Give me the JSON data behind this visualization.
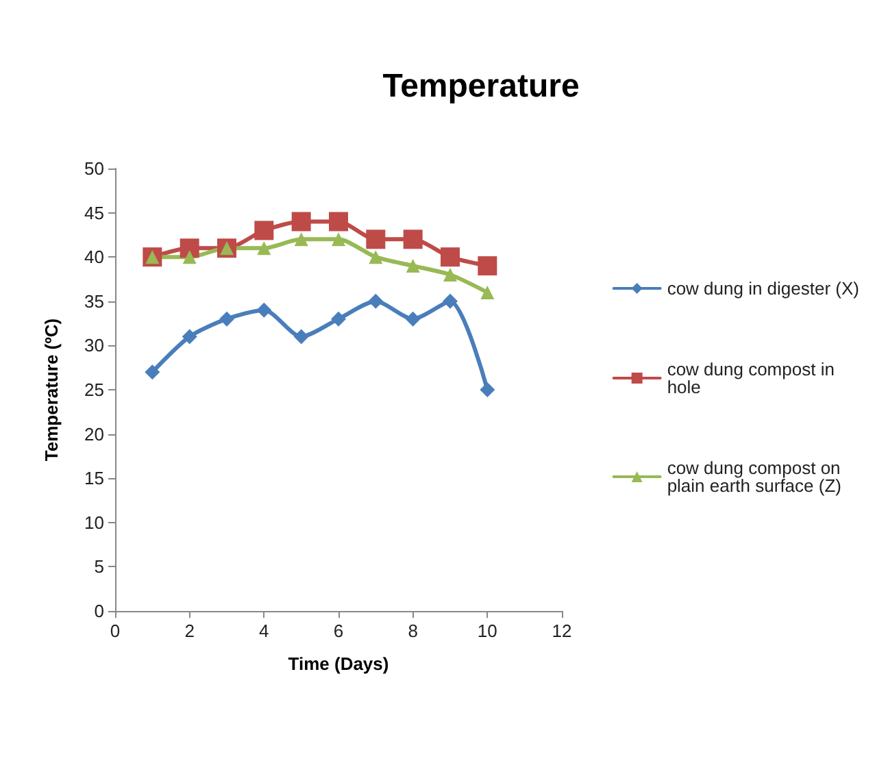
{
  "chart_data": {
    "type": "line",
    "title": "Temperature",
    "xlabel": "Time (Days)",
    "ylabel": "Temperature (ºC)",
    "x": [
      1,
      2,
      3,
      4,
      5,
      6,
      7,
      8,
      9,
      10
    ],
    "xlim": [
      0,
      12
    ],
    "xticks": [
      0,
      2,
      4,
      6,
      8,
      10,
      12
    ],
    "ylim": [
      0,
      50
    ],
    "yticks": [
      0,
      5,
      10,
      15,
      20,
      25,
      30,
      35,
      40,
      45,
      50
    ],
    "grid": false,
    "legend": "right",
    "line_style": "solid",
    "series": [
      {
        "name": "cow dung in digester (X)",
        "color": "#4a7ebb",
        "marker": "diamond",
        "values": [
          27,
          31,
          33,
          34,
          31,
          33,
          35,
          33,
          35,
          25
        ]
      },
      {
        "name": "cow dung compost in hole",
        "color": "#be4b48",
        "marker": "square",
        "values": [
          40,
          41,
          41,
          43,
          44,
          44,
          42,
          42,
          40,
          39
        ]
      },
      {
        "name": "cow dung compost on plain earth surface (Z)",
        "color": "#98b954",
        "marker": "triangle",
        "values": [
          40,
          40,
          41,
          41,
          42,
          42,
          40,
          39,
          38,
          36
        ]
      }
    ]
  }
}
